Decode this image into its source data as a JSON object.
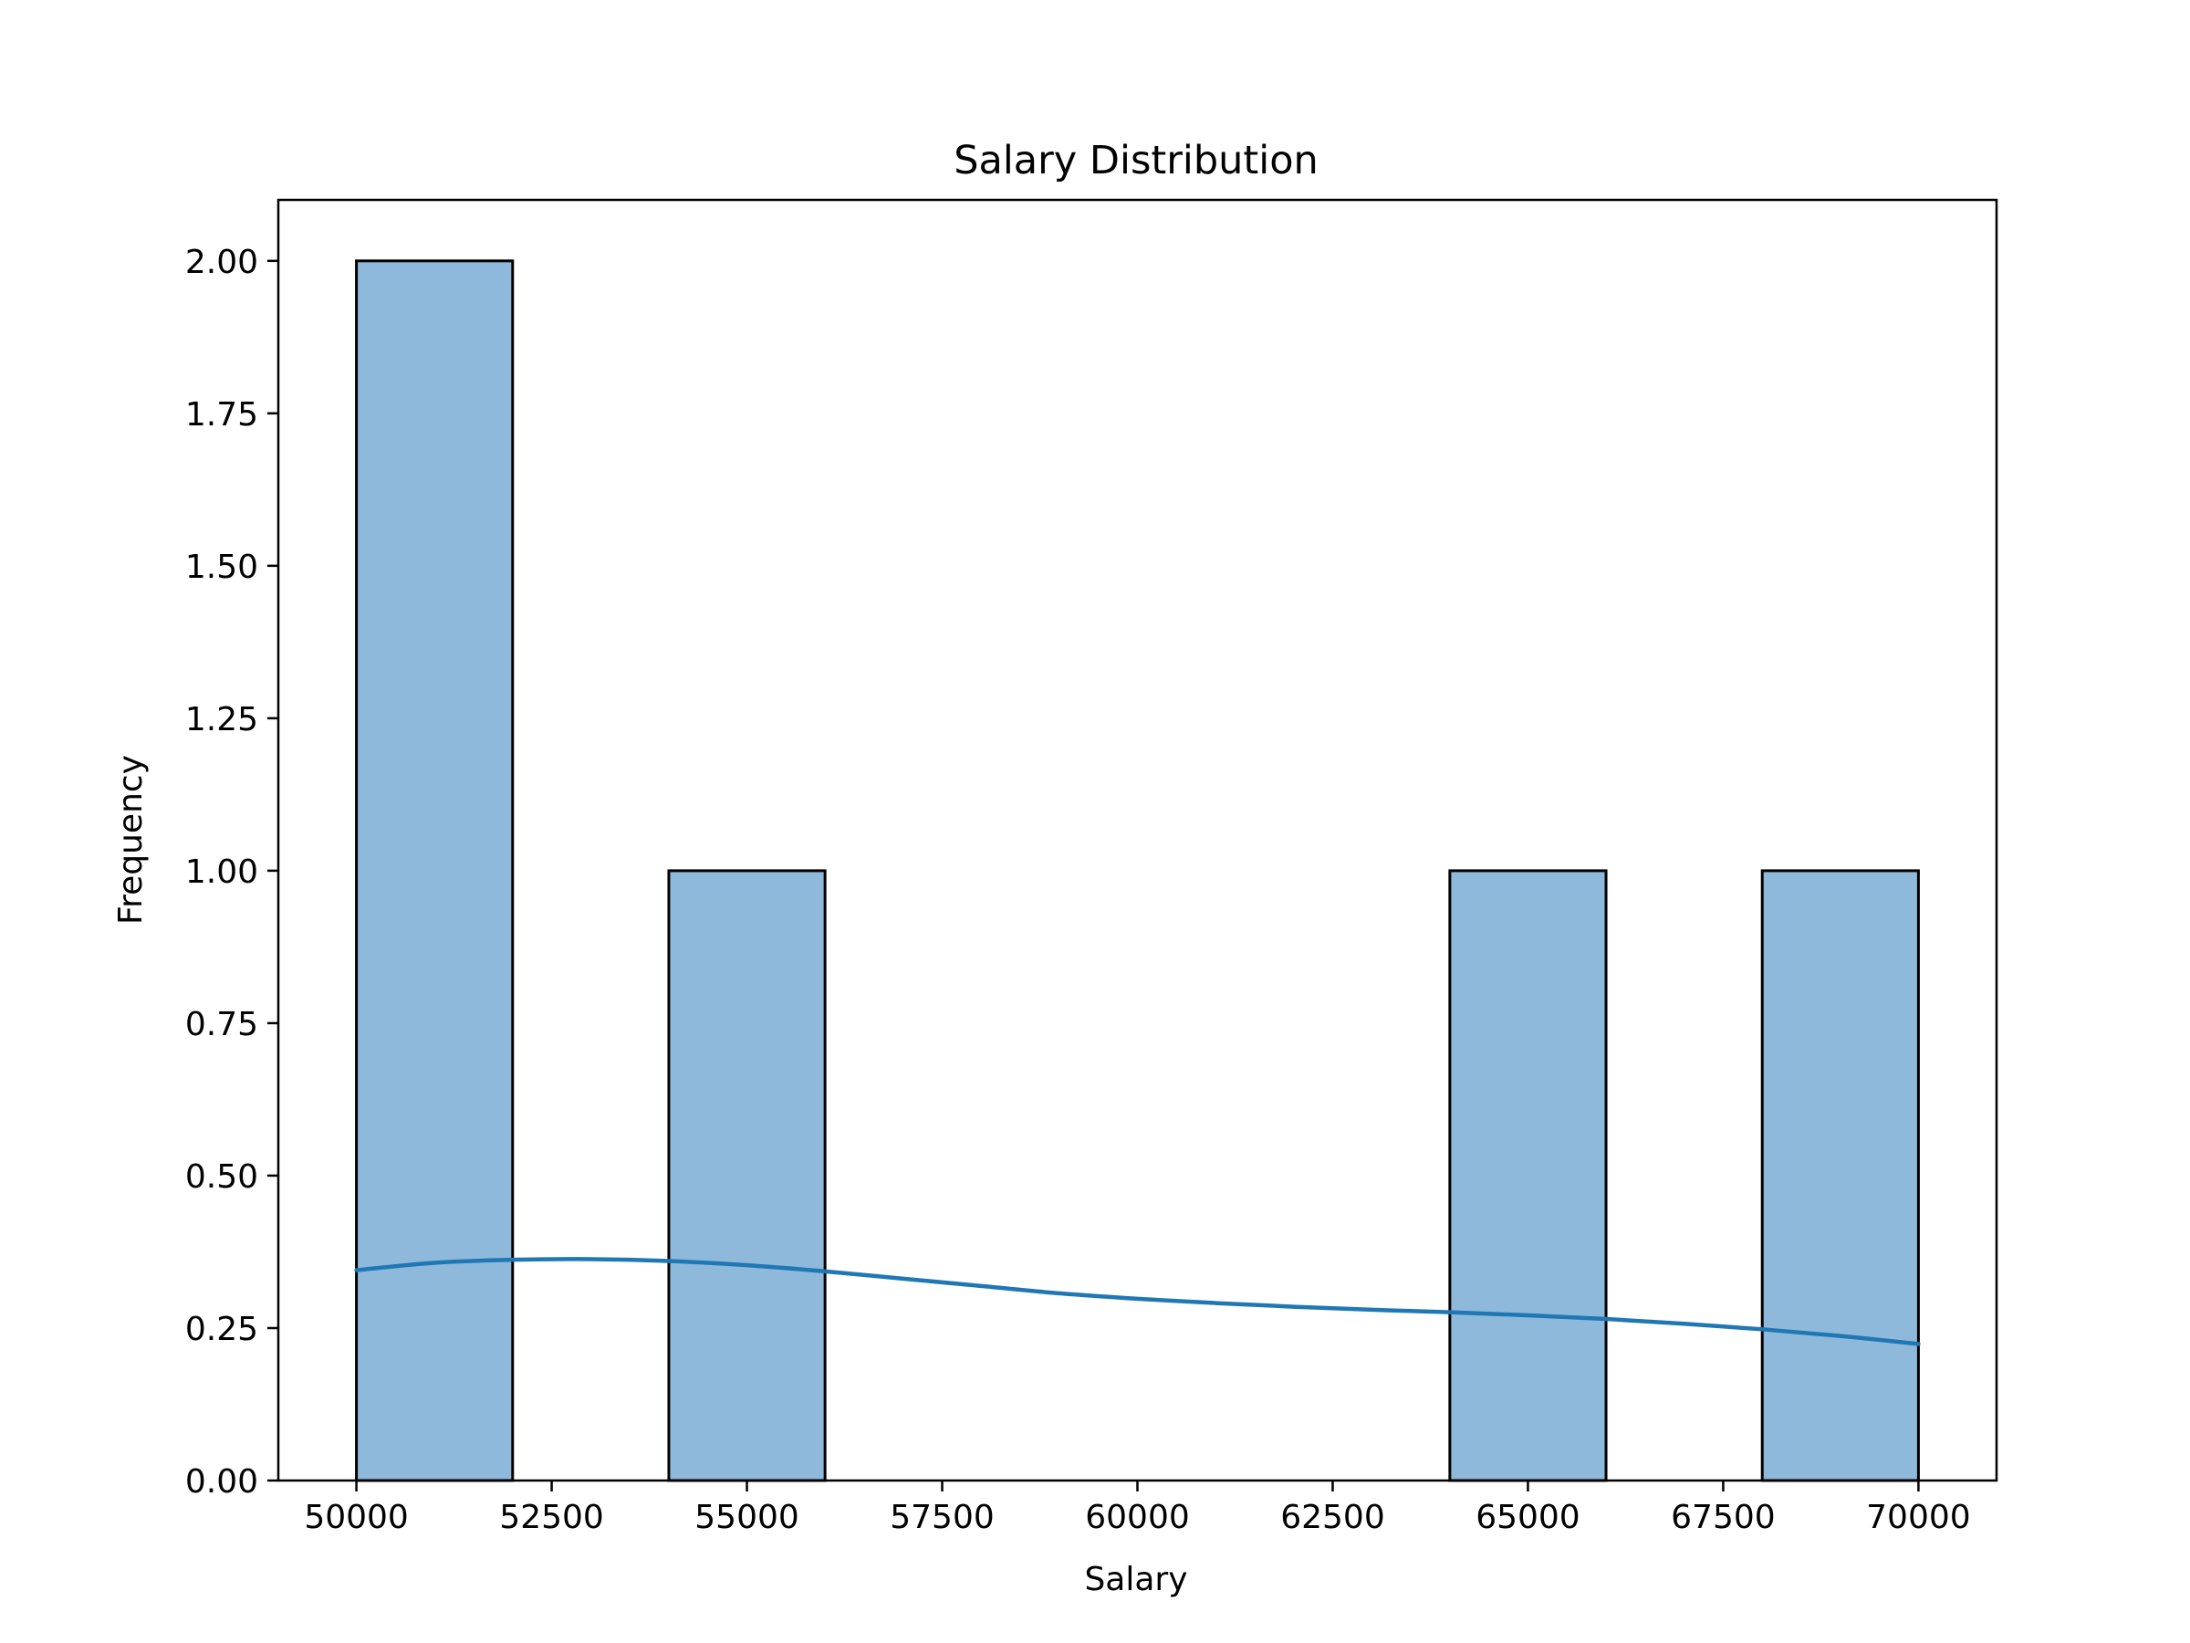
{
  "chart_data": {
    "type": "bar",
    "title": "Salary Distribution",
    "xlabel": "Salary",
    "ylabel": "Frequency",
    "xlim": [
      49000,
      71000
    ],
    "ylim": [
      0,
      2.1
    ],
    "x_ticks": [
      50000,
      52500,
      55000,
      57500,
      60000,
      62500,
      65000,
      67500,
      70000
    ],
    "x_tick_labels": [
      "50000",
      "52500",
      "55000",
      "57500",
      "60000",
      "62500",
      "65000",
      "67500",
      "70000"
    ],
    "y_ticks": [
      0,
      0.25,
      0.5,
      0.75,
      1.0,
      1.25,
      1.5,
      1.75,
      2.0
    ],
    "y_tick_labels": [
      "0.00",
      "0.25",
      "0.50",
      "0.75",
      "1.00",
      "1.25",
      "1.50",
      "1.75",
      "2.00"
    ],
    "bins": [
      {
        "x0": 50000,
        "x1": 52000,
        "count": 2
      },
      {
        "x0": 54000,
        "x1": 56000,
        "count": 1
      },
      {
        "x0": 64000,
        "x1": 66000,
        "count": 1
      },
      {
        "x0": 68000,
        "x1": 70000,
        "count": 1
      }
    ],
    "kde": {
      "x": [
        50000,
        51000,
        52000,
        53000,
        54000,
        55000,
        56000,
        57000,
        58000,
        59000,
        60000,
        61000,
        62000,
        63000,
        64000,
        65000,
        66000,
        67000,
        68000,
        69000,
        70000
      ],
      "y": [
        0.345,
        0.357,
        0.362,
        0.363,
        0.36,
        0.353,
        0.343,
        0.331,
        0.319,
        0.307,
        0.298,
        0.291,
        0.285,
        0.28,
        0.276,
        0.271,
        0.265,
        0.257,
        0.248,
        0.237,
        0.224
      ]
    },
    "grid": false,
    "colors": {
      "bar_fill": "#8fb9da",
      "bar_edge": "#000000",
      "kde_line": "#1f77b4"
    }
  }
}
